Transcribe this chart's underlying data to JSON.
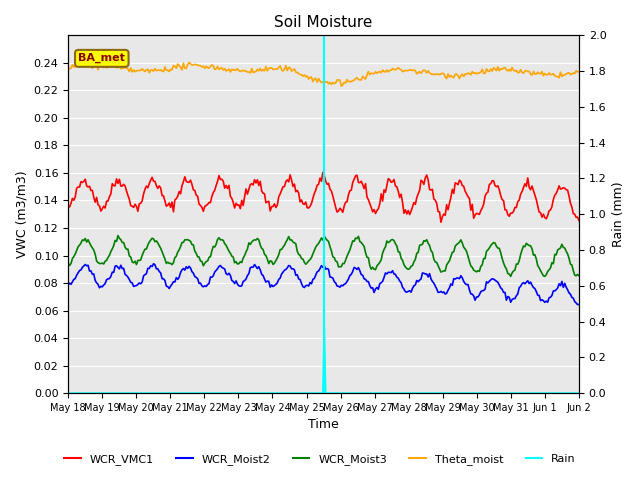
{
  "title": "Soil Moisture",
  "xlabel": "Time",
  "ylabel_left": "VWC (m3/m3)",
  "ylabel_right": "Rain (mm)",
  "ylim_left": [
    0.0,
    0.26
  ],
  "ylim_right": [
    0.0,
    2.0
  ],
  "yticks_left": [
    0.0,
    0.02,
    0.04,
    0.06,
    0.08,
    0.1,
    0.12,
    0.14,
    0.16,
    0.18,
    0.2,
    0.22,
    0.24
  ],
  "yticks_right": [
    0.0,
    0.2,
    0.4,
    0.6,
    0.8,
    1.0,
    1.2,
    1.4,
    1.6,
    1.8,
    2.0
  ],
  "background_color": "#e8e8e8",
  "vline_x": 7.5,
  "vline_color": "cyan",
  "station_label": "BA_met",
  "legend_entries": [
    "WCR_VMC1",
    "WCR_Moist2",
    "WCR_Moist3",
    "Theta_moist",
    "Rain"
  ],
  "legend_colors": [
    "red",
    "blue",
    "green",
    "orange",
    "cyan"
  ],
  "num_days": 15,
  "tick_positions": [
    0,
    1,
    2,
    3,
    4,
    5,
    6,
    7,
    8,
    9,
    10,
    11,
    12,
    13,
    14,
    15
  ],
  "tick_labels": [
    "May 18",
    "May 19",
    "May 20",
    "May 21",
    "May 22",
    "May 23",
    "May 24",
    "May 25",
    "May 26",
    "May 27",
    "May 28",
    "May 29",
    "May 30",
    "May 31",
    "Jun 1",
    "Jun 2"
  ]
}
